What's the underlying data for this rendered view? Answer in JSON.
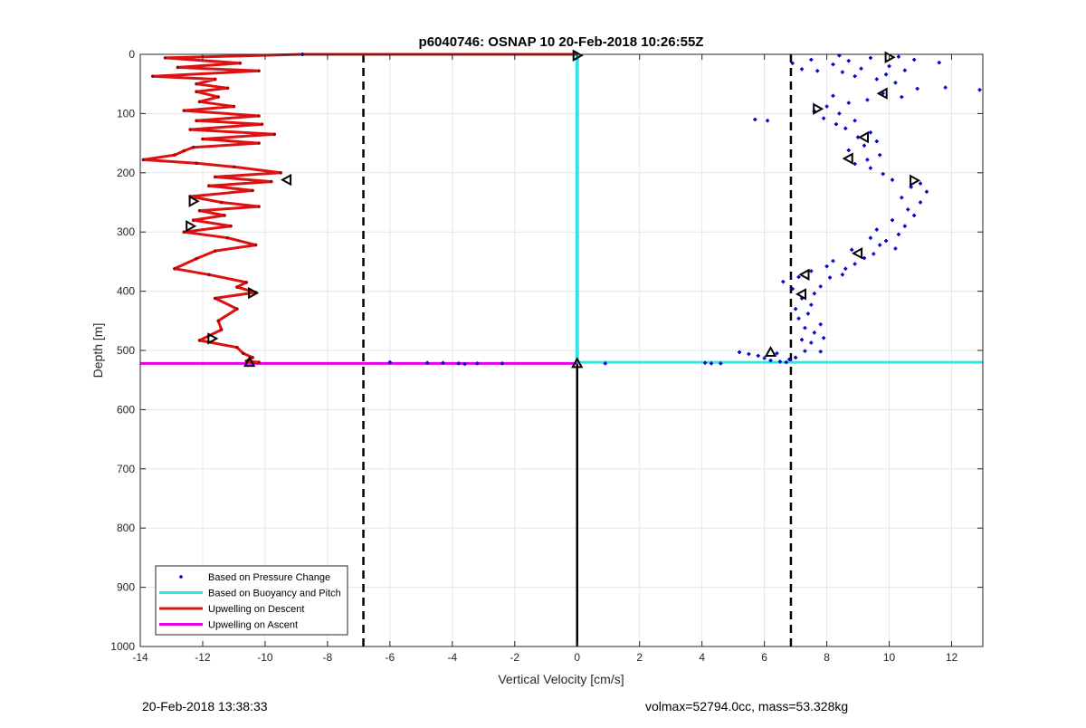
{
  "chart_data": {
    "type": "scatter",
    "title": "p6040746: OSNAP 10 20-Feb-2018 10:26:55Z",
    "xlabel": "Vertical Velocity [cm/s]",
    "ylabel": "Depth [m]",
    "xlim": [
      -14,
      13
    ],
    "ylim": [
      1000,
      0
    ],
    "y_reversed": true,
    "xticks": [
      -14,
      -12,
      -10,
      -8,
      -6,
      -4,
      -2,
      0,
      2,
      4,
      6,
      8,
      10,
      12
    ],
    "yticks": [
      0,
      100,
      200,
      300,
      400,
      500,
      600,
      700,
      800,
      900,
      1000
    ],
    "grid": true,
    "legend_position": "bottom-left",
    "legend": [
      {
        "label": "Based on Pressure Change",
        "style": "dot",
        "color": "#0000cc"
      },
      {
        "label": "Based on Buoyancy and Pitch",
        "style": "line",
        "color": "#33e6e6"
      },
      {
        "label": "Upwelling on Descent",
        "style": "line",
        "color": "#dd1111"
      },
      {
        "label": "Upwelling on Ascent",
        "style": "line",
        "color": "#e600e6"
      }
    ],
    "reference_lines": {
      "dashed_x": [
        -6.85,
        6.85
      ],
      "solid_x": 0,
      "solid_y_range": [
        520,
        1000
      ]
    },
    "buoyancy_pitch": {
      "descent_x": 0,
      "depth_range": [
        0,
        520
      ],
      "ascent_x_range": [
        0,
        13
      ],
      "ascent_depth": 520
    },
    "upwelling_ascent": {
      "x_range": [
        -14,
        0
      ],
      "depth": 522
    },
    "upwelling_descent": [
      [
        -8.8,
        0
      ],
      [
        -13.2,
        6
      ],
      [
        -10.8,
        15
      ],
      [
        -12.8,
        22
      ],
      [
        -10.2,
        28
      ],
      [
        -13.6,
        37
      ],
      [
        -11.6,
        42
      ],
      [
        -12.2,
        50
      ],
      [
        -11.2,
        57
      ],
      [
        -12.2,
        63
      ],
      [
        -11.5,
        72
      ],
      [
        -12.1,
        80
      ],
      [
        -11.0,
        88
      ],
      [
        -12.6,
        95
      ],
      [
        -10.2,
        104
      ],
      [
        -12.2,
        112
      ],
      [
        -10.1,
        118
      ],
      [
        -12.4,
        127
      ],
      [
        -9.7,
        135
      ],
      [
        -12.0,
        143
      ],
      [
        -10.2,
        150
      ],
      [
        -12.3,
        157
      ],
      [
        -12.6,
        163
      ],
      [
        -12.9,
        170
      ],
      [
        -13.9,
        178
      ],
      [
        -12.2,
        184
      ],
      [
        -11.0,
        190
      ],
      [
        -9.5,
        200
      ],
      [
        -11.6,
        207
      ],
      [
        -9.8,
        215
      ],
      [
        -11.8,
        222
      ],
      [
        -10.4,
        230
      ],
      [
        -12.4,
        240
      ],
      [
        -11.4,
        250
      ],
      [
        -10.2,
        257
      ],
      [
        -12.1,
        264
      ],
      [
        -11.3,
        272
      ],
      [
        -12.3,
        280
      ],
      [
        -11.1,
        290
      ],
      [
        -12.6,
        300
      ],
      [
        -11.2,
        310
      ],
      [
        -10.3,
        322
      ],
      [
        -11.6,
        332
      ],
      [
        -12.2,
        345
      ],
      [
        -12.9,
        362
      ],
      [
        -11.8,
        372
      ],
      [
        -10.6,
        385
      ],
      [
        -10.9,
        393
      ],
      [
        -10.3,
        402
      ],
      [
        -11.6,
        412
      ],
      [
        -10.9,
        430
      ],
      [
        -11.5,
        450
      ],
      [
        -11.4,
        465
      ],
      [
        -12.1,
        483
      ],
      [
        -10.9,
        495
      ],
      [
        -10.7,
        505
      ],
      [
        -10.4,
        512
      ],
      [
        -10.6,
        518
      ],
      [
        -10.2,
        520
      ]
    ],
    "descent_direction": [
      -8.8,
      0,
      0,
      0
    ],
    "pressure_change": [
      [
        -8.8,
        0
      ],
      [
        -6.0,
        520
      ],
      [
        -4.8,
        521
      ],
      [
        -4.3,
        521
      ],
      [
        -3.8,
        522
      ],
      [
        -3.6,
        523
      ],
      [
        -3.2,
        522
      ],
      [
        -2.4,
        522
      ],
      [
        0.9,
        522
      ],
      [
        4.1,
        521
      ],
      [
        4.3,
        522
      ],
      [
        4.6,
        522
      ],
      [
        5.2,
        503
      ],
      [
        5.5,
        506
      ],
      [
        5.8,
        509
      ],
      [
        6.0,
        513
      ],
      [
        6.2,
        517
      ],
      [
        6.5,
        519
      ],
      [
        6.7,
        520
      ],
      [
        6.4,
        505
      ],
      [
        6.8,
        515
      ],
      [
        7.0,
        512
      ],
      [
        7.3,
        501
      ],
      [
        7.8,
        502
      ],
      [
        7.5,
        487
      ],
      [
        7.2,
        482
      ],
      [
        7.9,
        479
      ],
      [
        7.6,
        470
      ],
      [
        7.3,
        462
      ],
      [
        7.8,
        456
      ],
      [
        7.1,
        446
      ],
      [
        7.4,
        438
      ],
      [
        7.0,
        430
      ],
      [
        7.5,
        423
      ],
      [
        7.2,
        412
      ],
      [
        7.6,
        404
      ],
      [
        6.9,
        396
      ],
      [
        7.8,
        392
      ],
      [
        6.6,
        384
      ],
      [
        7.1,
        376
      ],
      [
        8.1,
        377
      ],
      [
        7.5,
        366
      ],
      [
        8.5,
        372
      ],
      [
        8.0,
        358
      ],
      [
        8.6,
        362
      ],
      [
        8.9,
        354
      ],
      [
        8.2,
        349
      ],
      [
        9.2,
        344
      ],
      [
        9.5,
        337
      ],
      [
        8.8,
        330
      ],
      [
        9.7,
        322
      ],
      [
        10.2,
        328
      ],
      [
        9.9,
        315
      ],
      [
        9.4,
        310
      ],
      [
        10.3,
        304
      ],
      [
        9.6,
        296
      ],
      [
        10.5,
        290
      ],
      [
        10.1,
        280
      ],
      [
        10.8,
        272
      ],
      [
        10.6,
        262
      ],
      [
        11.0,
        250
      ],
      [
        10.4,
        242
      ],
      [
        11.2,
        232
      ],
      [
        10.7,
        224
      ],
      [
        11.0,
        218
      ],
      [
        10.1,
        212
      ],
      [
        9.8,
        202
      ],
      [
        9.4,
        192
      ],
      [
        8.9,
        185
      ],
      [
        9.3,
        178
      ],
      [
        9.7,
        170
      ],
      [
        8.7,
        162
      ],
      [
        9.2,
        154
      ],
      [
        9.6,
        147
      ],
      [
        9.0,
        140
      ],
      [
        9.4,
        132
      ],
      [
        8.6,
        125
      ],
      [
        8.3,
        118
      ],
      [
        8.9,
        112
      ],
      [
        7.9,
        108
      ],
      [
        8.4,
        100
      ],
      [
        7.6,
        96
      ],
      [
        8.0,
        88
      ],
      [
        8.7,
        82
      ],
      [
        9.3,
        77
      ],
      [
        8.2,
        70
      ],
      [
        9.8,
        66
      ],
      [
        10.4,
        72
      ],
      [
        10.9,
        58
      ],
      [
        11.8,
        56
      ],
      [
        12.9,
        60
      ],
      [
        10.2,
        48
      ],
      [
        9.6,
        42
      ],
      [
        8.9,
        37
      ],
      [
        8.5,
        30
      ],
      [
        9.1,
        24
      ],
      [
        8.2,
        17
      ],
      [
        8.7,
        11
      ],
      [
        9.4,
        6
      ],
      [
        8.4,
        2
      ],
      [
        7.5,
        9
      ],
      [
        6.9,
        15
      ],
      [
        7.2,
        25
      ],
      [
        7.7,
        28
      ],
      [
        6.1,
        112
      ],
      [
        5.7,
        110
      ],
      [
        10.3,
        4
      ],
      [
        10.8,
        9
      ],
      [
        11.6,
        14
      ],
      [
        10.0,
        20
      ],
      [
        10.5,
        27
      ],
      [
        9.9,
        34
      ]
    ],
    "markers_right": [
      [
        10.0,
        5,
        "r"
      ],
      [
        9.8,
        66,
        "l"
      ],
      [
        7.7,
        92,
        "r"
      ],
      [
        9.2,
        140,
        "l"
      ],
      [
        8.7,
        176,
        "l"
      ],
      [
        10.8,
        213,
        "r"
      ],
      [
        9.0,
        336,
        "l"
      ],
      [
        7.3,
        372,
        "l"
      ],
      [
        7.2,
        405,
        "l"
      ],
      [
        6.2,
        503,
        "u"
      ]
    ],
    "markers_left": [
      [
        -9.3,
        212,
        "l"
      ],
      [
        -12.3,
        248,
        "r"
      ],
      [
        -12.4,
        290,
        "r"
      ],
      [
        -10.4,
        403,
        "r"
      ],
      [
        -11.7,
        480,
        "r"
      ],
      [
        -10.5,
        520,
        "u"
      ]
    ],
    "markers_axis": [
      [
        0,
        2,
        "r"
      ],
      [
        0,
        522,
        "u"
      ]
    ]
  },
  "footer": {
    "left": "20-Feb-2018 13:38:33",
    "right": "volmax=52794.0cc, mass=53.328kg"
  }
}
